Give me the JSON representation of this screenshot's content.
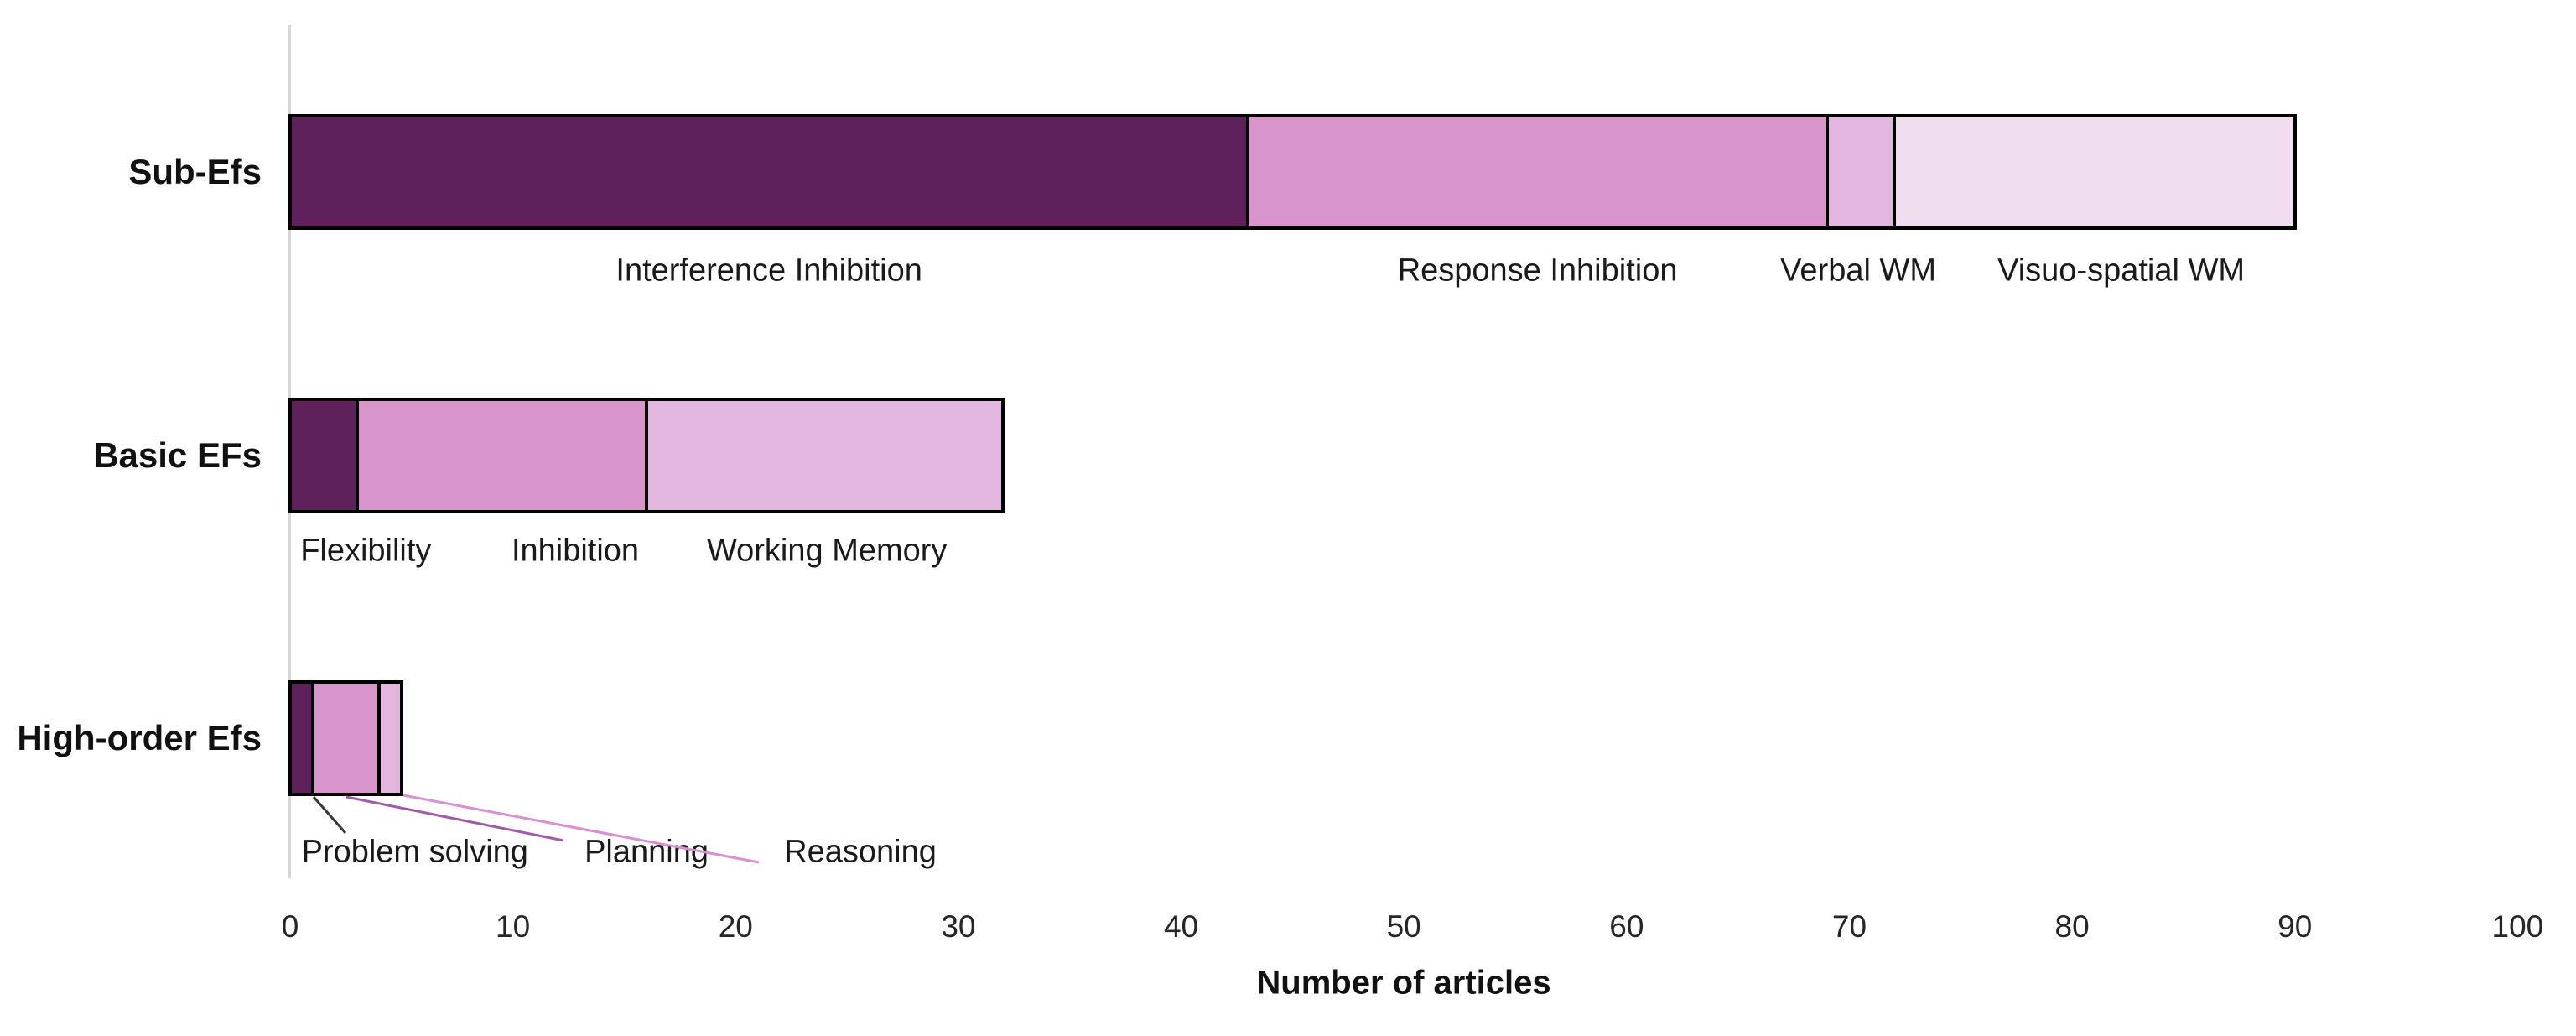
{
  "chart_data": {
    "type": "bar",
    "orientation": "horizontal",
    "stacked": true,
    "xlabel": "Number of articles",
    "xlim": [
      0,
      100
    ],
    "x_ticks": [
      0,
      10,
      20,
      30,
      40,
      50,
      60,
      70,
      80,
      90,
      100
    ],
    "grid": false,
    "legend": "none (segments labeled directly under bars)",
    "categories": [
      "Sub-Efs",
      "Basic EFs",
      "High-order Efs"
    ],
    "rows": [
      {
        "category": "Sub-Efs",
        "total": 90,
        "segments": [
          {
            "label": "Interference Inhibition",
            "value": 43,
            "color": "#5F215B",
            "label_at": 21.5
          },
          {
            "label": "Response Inhibition",
            "value": 26,
            "color": "#D795CB",
            "label_at": 56.0
          },
          {
            "label": "Verbal WM",
            "value": 3,
            "color": "#E2B6DE",
            "label_at": 70.4
          },
          {
            "label": "Visuo-spatial WM",
            "value": 18,
            "color": "#F0DDEE",
            "label_at": 82.2
          }
        ]
      },
      {
        "category": "Basic EFs",
        "total": 32,
        "segments": [
          {
            "label": "Flexibility",
            "value": 3,
            "color": "#5F215B",
            "label_at": 3.4
          },
          {
            "label": "Inhibition",
            "value": 13,
            "color": "#D795CB",
            "label_at": 12.8
          },
          {
            "label": "Working Memory",
            "value": 16,
            "color": "#E2B6DE",
            "label_at": 24.1
          }
        ]
      },
      {
        "category": "High-order Efs",
        "total": 5,
        "segments": [
          {
            "label": "Problem solving",
            "value": 1,
            "color": "#5F215B",
            "label_at": 5.6
          },
          {
            "label": "Planning",
            "value": 3,
            "color": "#D795CB",
            "label_at": 16.0
          },
          {
            "label": "Reasoning",
            "value": 1,
            "color": "#E2B6DE",
            "label_at": 25.6
          }
        ]
      }
    ],
    "colors": {
      "series_dark": "#5F215B",
      "series_medium": "#D795CB",
      "series_light": "#E2B6DE",
      "series_palest": "#F0DDEE",
      "segment_border": "#000000",
      "axis_line": "#D6D6D6",
      "leader_black": "#3a3a3a",
      "leader_purple": "#A05AAA",
      "leader_pink": "#DA8FD0"
    }
  }
}
